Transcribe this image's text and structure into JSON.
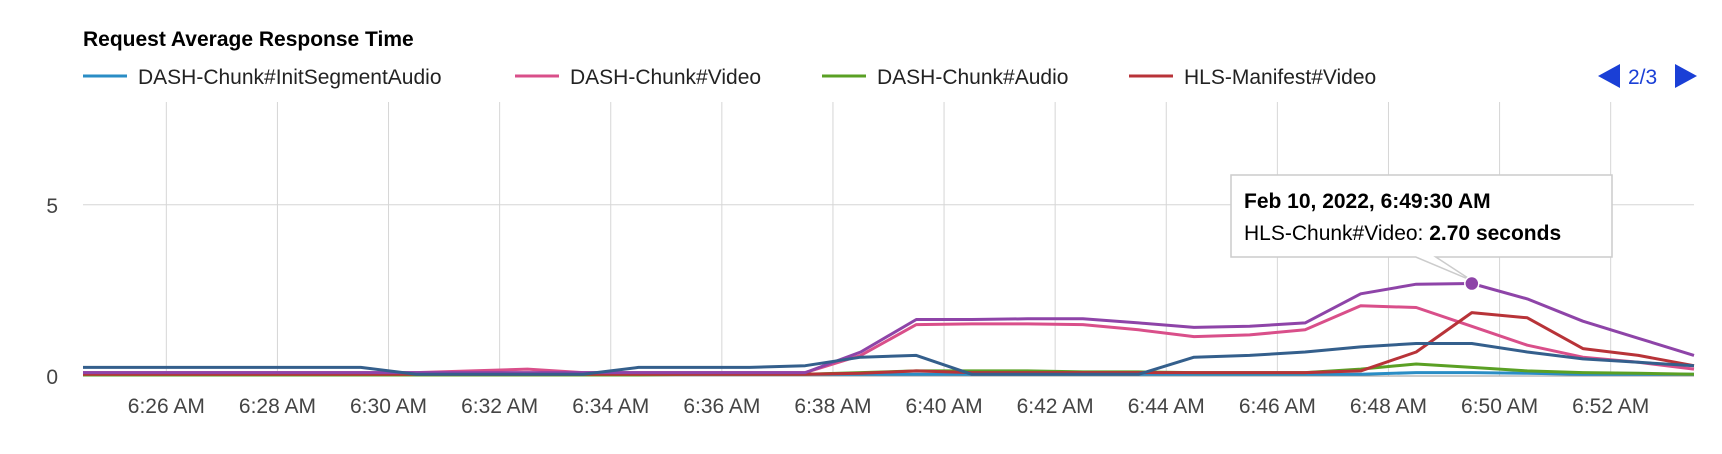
{
  "chart_data": {
    "type": "line",
    "title": "Request Average Response Time",
    "xlabel": "",
    "ylabel": "",
    "ylim": [
      0,
      8
    ],
    "y_ticks": [
      0,
      5
    ],
    "x_range": [
      "6:24:30",
      "6:53:30"
    ],
    "x_ticks": [
      "6:26 AM",
      "6:28 AM",
      "6:30 AM",
      "6:32 AM",
      "6:34 AM",
      "6:36 AM",
      "6:38 AM",
      "6:40 AM",
      "6:42 AM",
      "6:44 AM",
      "6:46 AM",
      "6:48 AM",
      "6:50 AM",
      "6:52 AM"
    ],
    "x": [
      "6:24:30",
      "6:25:30",
      "6:26:30",
      "6:27:30",
      "6:28:30",
      "6:29:30",
      "6:30:30",
      "6:31:30",
      "6:32:30",
      "6:33:30",
      "6:34:30",
      "6:35:30",
      "6:36:30",
      "6:37:30",
      "6:38:30",
      "6:39:30",
      "6:40:30",
      "6:41:30",
      "6:42:30",
      "6:43:30",
      "6:44:30",
      "6:45:30",
      "6:46:30",
      "6:47:30",
      "6:48:30",
      "6:49:30",
      "6:50:30",
      "6:51:30",
      "6:52:30",
      "6:53:30"
    ],
    "grid": true,
    "legend_position": "top",
    "legend": {
      "visible_entries": [
        "DASH-Chunk#InitSegmentAudio",
        "DASH-Chunk#Video",
        "DASH-Chunk#Audio",
        "HLS-Manifest#Video"
      ],
      "page": "2/3"
    },
    "series": [
      {
        "name": "DASH-Chunk#InitSegmentAudio",
        "color": "#2a8dc5",
        "values": [
          0.05,
          0.05,
          0.05,
          0.05,
          0.05,
          0.05,
          0.05,
          0.05,
          0.05,
          0.05,
          0.05,
          0.05,
          0.05,
          0.05,
          0.05,
          0.05,
          0.05,
          0.05,
          0.05,
          0.05,
          0.05,
          0.05,
          0.05,
          0.05,
          0.1,
          0.1,
          0.08,
          0.05,
          0.05,
          0.05
        ]
      },
      {
        "name": "DASH-Chunk#Video",
        "color": "#d94f8a",
        "values": [
          0.1,
          0.1,
          0.1,
          0.1,
          0.1,
          0.1,
          0.1,
          0.15,
          0.2,
          0.1,
          0.1,
          0.1,
          0.1,
          0.1,
          0.6,
          1.5,
          1.52,
          1.52,
          1.5,
          1.35,
          1.15,
          1.2,
          1.35,
          2.05,
          2.0,
          1.45,
          0.9,
          0.55,
          0.4,
          0.2
        ]
      },
      {
        "name": "DASH-Chunk#Audio",
        "color": "#5aa024",
        "values": [
          0.03,
          0.03,
          0.03,
          0.03,
          0.03,
          0.03,
          0.03,
          0.03,
          0.03,
          0.03,
          0.03,
          0.05,
          0.05,
          0.05,
          0.1,
          0.15,
          0.15,
          0.15,
          0.12,
          0.12,
          0.1,
          0.1,
          0.1,
          0.2,
          0.35,
          0.25,
          0.15,
          0.1,
          0.08,
          0.05
        ]
      },
      {
        "name": "HLS-Manifest#Video",
        "color": "#b83338",
        "values": [
          0.05,
          0.05,
          0.05,
          0.05,
          0.05,
          0.05,
          0.05,
          0.05,
          0.05,
          0.05,
          0.05,
          0.05,
          0.05,
          0.05,
          0.08,
          0.15,
          0.1,
          0.1,
          0.1,
          0.1,
          0.1,
          0.1,
          0.1,
          0.15,
          0.7,
          1.85,
          1.7,
          0.8,
          0.6,
          0.3
        ]
      },
      {
        "name": "HLS-Chunk#Video",
        "color": "#8e44a8",
        "values": [
          0.1,
          0.1,
          0.1,
          0.1,
          0.1,
          0.1,
          0.1,
          0.1,
          0.1,
          0.1,
          0.1,
          0.1,
          0.1,
          0.1,
          0.7,
          1.65,
          1.65,
          1.67,
          1.67,
          1.55,
          1.42,
          1.45,
          1.55,
          2.4,
          2.68,
          2.7,
          2.25,
          1.6,
          1.1,
          0.6
        ]
      },
      {
        "name": "",
        "color": "#345f8c",
        "values": [
          0.25,
          0.25,
          0.25,
          0.25,
          0.25,
          0.25,
          0.05,
          0.05,
          0.05,
          0.05,
          0.25,
          0.25,
          0.25,
          0.3,
          0.55,
          0.6,
          0.05,
          0.05,
          0.05,
          0.05,
          0.55,
          0.6,
          0.7,
          0.85,
          0.95,
          0.95,
          0.7,
          0.5,
          0.4,
          0.3
        ]
      }
    ],
    "tooltip": {
      "title": "Feb 10, 2022, 6:49:30 AM",
      "series_label": "HLS-Chunk#Video:",
      "value_text": "2.70 seconds",
      "series_index": 4,
      "point_index": 25
    }
  }
}
